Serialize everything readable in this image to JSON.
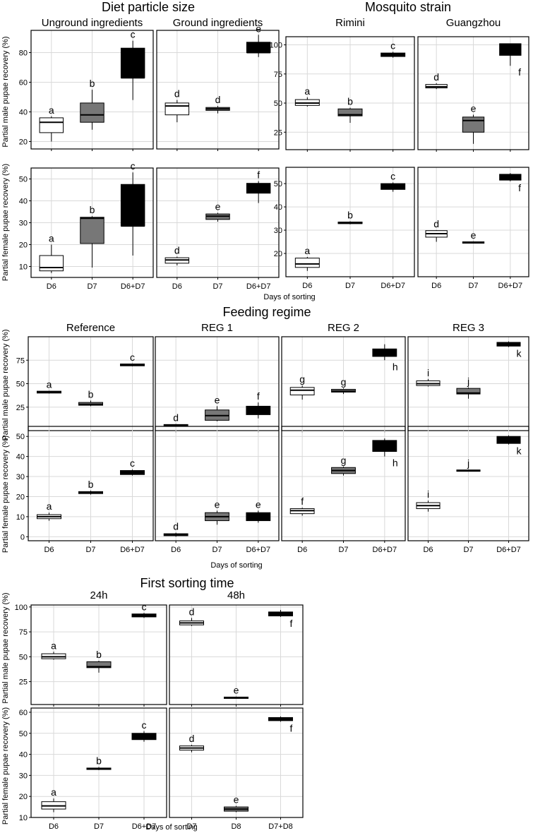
{
  "figure": {
    "sections": [
      {
        "id": "diet",
        "title": "Diet particle size"
      },
      {
        "id": "strain",
        "title": "Mosquito strain"
      },
      {
        "id": "feeding",
        "title": "Feeding regime"
      },
      {
        "id": "sorting",
        "title": "First sorting time"
      }
    ],
    "ylabels": {
      "male": "Partial male pupae recovery (%)",
      "female": "Partial female pupae recovery (%)"
    },
    "xlabel": "Days of sorting",
    "fill_colors": {
      "first": "#ffffff",
      "second": "#777777",
      "third": "#000000"
    }
  },
  "chart_data": [
    {
      "type": "box",
      "id": "diet-m-1",
      "section": "diet",
      "panel_title": "Unground ingredients",
      "metric": "male",
      "categories": [
        "D6",
        "D7",
        "D6+D7"
      ],
      "ylim": [
        15,
        95
      ],
      "yticks": [
        20,
        40,
        60,
        80
      ],
      "boxes": [
        {
          "q1": 26,
          "median": 33,
          "q3": 36,
          "min": 20,
          "max": 37,
          "label": "a"
        },
        {
          "q1": 33,
          "median": 38,
          "q3": 46,
          "min": 28,
          "max": 55,
          "label": "b"
        },
        {
          "q1": 63,
          "median": 63,
          "q3": 83,
          "min": 48,
          "max": 88,
          "label": "c"
        }
      ]
    },
    {
      "type": "box",
      "id": "diet-m-2",
      "section": "diet",
      "panel_title": "Ground ingredients",
      "metric": "male",
      "categories": [
        "D6",
        "D7",
        "D6+D7"
      ],
      "ylim": [
        15,
        95
      ],
      "yticks": [
        20,
        40,
        60,
        80
      ],
      "boxes": [
        {
          "q1": 38,
          "median": 44,
          "q3": 46,
          "min": 33,
          "max": 48,
          "label": "d"
        },
        {
          "q1": 41,
          "median": 42,
          "q3": 43,
          "min": 39,
          "max": 44,
          "label": "d"
        },
        {
          "q1": 80,
          "median": 80,
          "q3": 87,
          "min": 77,
          "max": 92,
          "label": "e"
        }
      ]
    },
    {
      "type": "box",
      "id": "diet-f-1",
      "section": "diet",
      "metric": "female",
      "categories": [
        "D6",
        "D7",
        "D6+D7"
      ],
      "ylim": [
        5,
        55
      ],
      "yticks": [
        10,
        20,
        30,
        40,
        50
      ],
      "boxes": [
        {
          "q1": 8,
          "median": 9.5,
          "q3": 15,
          "min": 7,
          "max": 20,
          "label": "a"
        },
        {
          "q1": 20.5,
          "median": 32,
          "q3": 32.5,
          "min": 9.5,
          "max": 33,
          "label": "b"
        },
        {
          "q1": 28.5,
          "median": 28.5,
          "q3": 47.5,
          "min": 15,
          "max": 53,
          "label": "c"
        }
      ]
    },
    {
      "type": "box",
      "id": "diet-f-2",
      "section": "diet",
      "metric": "female",
      "categories": [
        "D6",
        "D7",
        "D6+D7"
      ],
      "ylim": [
        5,
        55
      ],
      "yticks": [
        10,
        20,
        30,
        40,
        50
      ],
      "boxes": [
        {
          "q1": 11.5,
          "median": 13,
          "q3": 14,
          "min": 10.5,
          "max": 14.5,
          "label": "d"
        },
        {
          "q1": 31.5,
          "median": 33,
          "q3": 34,
          "min": 30.5,
          "max": 34.5,
          "label": "e"
        },
        {
          "q1": 43.5,
          "median": 45,
          "q3": 48,
          "min": 39,
          "max": 49,
          "label": "f"
        }
      ]
    },
    {
      "type": "box",
      "id": "strain-m-1",
      "section": "strain",
      "panel_title": "Rimini",
      "metric": "male",
      "categories": [
        "D6",
        "D7",
        "D6+D7"
      ],
      "ylim": [
        10,
        107
      ],
      "yticks": [
        25,
        50,
        75,
        100
      ],
      "boxes": [
        {
          "q1": 48,
          "median": 50,
          "q3": 53,
          "min": 47,
          "max": 55,
          "label": "a"
        },
        {
          "q1": 39,
          "median": 40,
          "q3": 45,
          "min": 33,
          "max": 46,
          "label": "b"
        },
        {
          "q1": 90,
          "median": 92,
          "q3": 93,
          "min": 89,
          "max": 94,
          "label": "c"
        }
      ]
    },
    {
      "type": "box",
      "id": "strain-m-2",
      "section": "strain",
      "panel_title": "Guangzhou",
      "metric": "male",
      "categories": [
        "D6",
        "D7",
        "D6+D7"
      ],
      "ylim": [
        10,
        107
      ],
      "yticks": [
        25,
        50,
        75,
        100
      ],
      "boxes": [
        {
          "q1": 63,
          "median": 64,
          "q3": 66,
          "min": 62,
          "max": 67,
          "label": "d"
        },
        {
          "q1": 25,
          "median": 35,
          "q3": 38,
          "min": 15,
          "max": 40,
          "label": "e"
        },
        {
          "q1": 91,
          "median": 92,
          "q3": 101,
          "min": 82,
          "max": 101,
          "label": "f",
          "label_below": true
        }
      ]
    },
    {
      "type": "box",
      "id": "strain-f-1",
      "section": "strain",
      "metric": "female",
      "categories": [
        "D6",
        "D7",
        "D6+D7"
      ],
      "ylim": [
        10,
        57
      ],
      "yticks": [
        20,
        30,
        40,
        50
      ],
      "boxes": [
        {
          "q1": 14,
          "median": 15.5,
          "q3": 18,
          "min": 12.5,
          "max": 18.5,
          "label": "a"
        },
        {
          "q1": 32.8,
          "median": 33,
          "q3": 33.5,
          "min": 32.5,
          "max": 33.8,
          "label": "b"
        },
        {
          "q1": 47.5,
          "median": 48.5,
          "q3": 50,
          "min": 46.5,
          "max": 50.5,
          "label": "c"
        }
      ]
    },
    {
      "type": "box",
      "id": "strain-f-2",
      "section": "strain",
      "metric": "female",
      "categories": [
        "D6",
        "D7",
        "D6+D7"
      ],
      "ylim": [
        10,
        57
      ],
      "yticks": [
        20,
        30,
        40,
        50
      ],
      "boxes": [
        {
          "q1": 27,
          "median": 28.5,
          "q3": 29.8,
          "min": 25,
          "max": 30,
          "label": "d"
        },
        {
          "q1": 24.5,
          "median": 24.7,
          "q3": 25,
          "min": 24.3,
          "max": 25.2,
          "label": "e"
        },
        {
          "q1": 51.5,
          "median": 52,
          "q3": 54,
          "min": 51,
          "max": 54.5,
          "label": "f",
          "label_below": true
        }
      ]
    },
    {
      "type": "box",
      "id": "feed-m-1",
      "section": "feeding",
      "panel_title": "Reference",
      "metric": "male",
      "categories": [
        "D6",
        "D7",
        "D6+D7"
      ],
      "ylim": [
        0,
        100
      ],
      "yticks": [
        25,
        50,
        75
      ],
      "boxes": [
        {
          "q1": 40,
          "median": 41,
          "q3": 42,
          "min": 39.5,
          "max": 42.5,
          "label": "a"
        },
        {
          "q1": 27,
          "median": 28,
          "q3": 30,
          "min": 26,
          "max": 32,
          "label": "b"
        },
        {
          "q1": 69,
          "median": 70,
          "q3": 71,
          "min": 68.5,
          "max": 71.5,
          "label": "c"
        }
      ]
    },
    {
      "type": "box",
      "id": "feed-m-2",
      "section": "feeding",
      "panel_title": "REG 1",
      "metric": "male",
      "categories": [
        "D6",
        "D7",
        "D6+D7"
      ],
      "ylim": [
        0,
        100
      ],
      "yticks": [
        25,
        50,
        75
      ],
      "boxes": [
        {
          "q1": 5.5,
          "median": 6,
          "q3": 6.5,
          "min": 5,
          "max": 7,
          "label": "d"
        },
        {
          "q1": 11,
          "median": 16,
          "q3": 22,
          "min": 10,
          "max": 26,
          "label": "e"
        },
        {
          "q1": 17,
          "median": 21,
          "q3": 26,
          "min": 13,
          "max": 30,
          "label": "f"
        }
      ]
    },
    {
      "type": "box",
      "id": "feed-m-3",
      "section": "feeding",
      "panel_title": "REG 2",
      "metric": "male",
      "categories": [
        "D6",
        "D7",
        "D6+D7"
      ],
      "ylim": [
        0,
        100
      ],
      "yticks": [
        25,
        50,
        75
      ],
      "boxes": [
        {
          "q1": 38,
          "median": 43,
          "q3": 46,
          "min": 33,
          "max": 48,
          "label": "g"
        },
        {
          "q1": 41,
          "median": 42,
          "q3": 44,
          "min": 39,
          "max": 45,
          "label": "g"
        },
        {
          "q1": 79,
          "median": 80,
          "q3": 87,
          "min": 75,
          "max": 92,
          "label": "h",
          "label_below": true
        }
      ]
    },
    {
      "type": "box",
      "id": "feed-m-4",
      "section": "feeding",
      "panel_title": "REG 3",
      "metric": "male",
      "categories": [
        "D6",
        "D7",
        "D6+D7"
      ],
      "ylim": [
        0,
        100
      ],
      "yticks": [
        25,
        50,
        75
      ],
      "boxes": [
        {
          "q1": 48,
          "median": 50,
          "q3": 53,
          "min": 47,
          "max": 55,
          "label": "i"
        },
        {
          "q1": 39,
          "median": 40,
          "q3": 45,
          "min": 34,
          "max": 46,
          "label": "j"
        },
        {
          "q1": 90,
          "median": 92,
          "q3": 94,
          "min": 89,
          "max": 95,
          "label": "k",
          "label_below": true
        }
      ]
    },
    {
      "type": "box",
      "id": "feed-f-1",
      "section": "feeding",
      "metric": "female",
      "categories": [
        "D6",
        "D7",
        "D6+D7"
      ],
      "ylim": [
        -2,
        55
      ],
      "yticks": [
        0,
        10,
        20,
        30,
        40,
        50
      ],
      "boxes": [
        {
          "q1": 9,
          "median": 10,
          "q3": 11,
          "min": 8,
          "max": 12,
          "label": "a"
        },
        {
          "q1": 21.5,
          "median": 22,
          "q3": 22.5,
          "min": 21,
          "max": 23,
          "label": "b"
        },
        {
          "q1": 31,
          "median": 32,
          "q3": 33,
          "min": 30.5,
          "max": 33.5,
          "label": "c"
        }
      ]
    },
    {
      "type": "box",
      "id": "feed-f-2",
      "section": "feeding",
      "metric": "female",
      "categories": [
        "D6",
        "D7",
        "D6+D7"
      ],
      "ylim": [
        -2,
        55
      ],
      "yticks": [
        0,
        10,
        20,
        30,
        40,
        50
      ],
      "boxes": [
        {
          "q1": 0.5,
          "median": 1,
          "q3": 1.5,
          "min": 0,
          "max": 2,
          "label": "d"
        },
        {
          "q1": 8,
          "median": 10,
          "q3": 12,
          "min": 6,
          "max": 13,
          "label": "e"
        },
        {
          "q1": 8,
          "median": 10,
          "q3": 12,
          "min": 7,
          "max": 13,
          "label": "e"
        }
      ]
    },
    {
      "type": "box",
      "id": "feed-f-3",
      "section": "feeding",
      "metric": "female",
      "categories": [
        "D6",
        "D7",
        "D6+D7"
      ],
      "ylim": [
        -2,
        55
      ],
      "yticks": [
        0,
        10,
        20,
        30,
        40,
        50
      ],
      "boxes": [
        {
          "q1": 11.5,
          "median": 13,
          "q3": 14,
          "min": 10.5,
          "max": 14.5,
          "label": "f"
        },
        {
          "q1": 31.5,
          "median": 33,
          "q3": 34.5,
          "min": 30.5,
          "max": 35,
          "label": "g"
        },
        {
          "q1": 42.5,
          "median": 45,
          "q3": 48,
          "min": 40,
          "max": 49,
          "label": "h",
          "label_below": true
        }
      ]
    },
    {
      "type": "box",
      "id": "feed-f-4",
      "section": "feeding",
      "metric": "female",
      "categories": [
        "D6",
        "D7",
        "D6+D7"
      ],
      "ylim": [
        -2,
        55
      ],
      "yticks": [
        0,
        10,
        20,
        30,
        40,
        50
      ],
      "boxes": [
        {
          "q1": 14,
          "median": 15.5,
          "q3": 17,
          "min": 12.5,
          "max": 18,
          "label": "i"
        },
        {
          "q1": 32.8,
          "median": 33,
          "q3": 33.3,
          "min": 32.5,
          "max": 33.5,
          "label": "j"
        },
        {
          "q1": 46.5,
          "median": 48.5,
          "q3": 50,
          "min": 46,
          "max": 50.5,
          "label": "k",
          "label_below": true
        }
      ]
    },
    {
      "type": "box",
      "id": "sort-m-1",
      "section": "sorting",
      "panel_title": "24h",
      "metric": "male",
      "categories": [
        "D6",
        "D7",
        "D6+D7"
      ],
      "ylim": [
        2,
        102
      ],
      "yticks": [
        25,
        50,
        75,
        100
      ],
      "boxes": [
        {
          "q1": 48,
          "median": 50,
          "q3": 53,
          "min": 47,
          "max": 55,
          "label": "a"
        },
        {
          "q1": 39,
          "median": 40,
          "q3": 45,
          "min": 34,
          "max": 46,
          "label": "b"
        },
        {
          "q1": 90,
          "median": 92,
          "q3": 93,
          "min": 89,
          "max": 94,
          "label": "c"
        }
      ]
    },
    {
      "type": "box",
      "id": "sort-m-2",
      "section": "sorting",
      "panel_title": "48h",
      "metric": "male",
      "categories": [
        "D7",
        "D8",
        "D7+D8"
      ],
      "ylim": [
        2,
        102
      ],
      "yticks": [
        25,
        50,
        75,
        100
      ],
      "boxes": [
        {
          "q1": 82,
          "median": 84,
          "q3": 86,
          "min": 81,
          "max": 89,
          "label": "d"
        },
        {
          "q1": 8.5,
          "median": 9,
          "q3": 9.5,
          "min": 8,
          "max": 10,
          "label": "e"
        },
        {
          "q1": 91,
          "median": 92,
          "q3": 95,
          "min": 90,
          "max": 97,
          "label": "f",
          "label_below": true
        }
      ]
    },
    {
      "type": "box",
      "id": "sort-f-1",
      "section": "sorting",
      "metric": "female",
      "categories": [
        "D6",
        "D7",
        "D6+D7"
      ],
      "ylim": [
        10,
        62
      ],
      "yticks": [
        10,
        20,
        30,
        40,
        50,
        60
      ],
      "boxes": [
        {
          "q1": 14,
          "median": 15.5,
          "q3": 17.5,
          "min": 12.5,
          "max": 19,
          "label": "a"
        },
        {
          "q1": 32.8,
          "median": 33,
          "q3": 33.5,
          "min": 32.5,
          "max": 34,
          "label": "b"
        },
        {
          "q1": 47,
          "median": 48.5,
          "q3": 50,
          "min": 46,
          "max": 51,
          "label": "c"
        }
      ]
    },
    {
      "type": "box",
      "id": "sort-f-2",
      "section": "sorting",
      "metric": "female",
      "categories": [
        "D7",
        "D8",
        "D7+D8"
      ],
      "ylim": [
        10,
        62
      ],
      "yticks": [
        10,
        20,
        30,
        40,
        50,
        60
      ],
      "boxes": [
        {
          "q1": 42,
          "median": 43,
          "q3": 44,
          "min": 41,
          "max": 44.5,
          "label": "d"
        },
        {
          "q1": 13,
          "median": 14,
          "q3": 15,
          "min": 12.5,
          "max": 15.5,
          "label": "e"
        },
        {
          "q1": 56,
          "median": 57,
          "q3": 57.5,
          "min": 55.5,
          "max": 58,
          "label": "f",
          "label_below": true
        }
      ]
    }
  ]
}
